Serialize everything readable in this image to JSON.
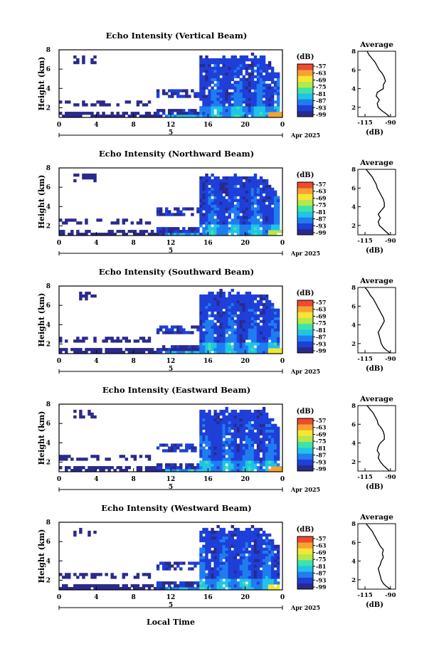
{
  "chart_data": {
    "type": "heatmap",
    "xlabel": "Local Time",
    "date_label": "5",
    "date_suffix": "Apr 2025",
    "x_ticks": [
      "0",
      "4",
      "8",
      "12",
      "16",
      "20",
      "0"
    ],
    "xlim_hours": [
      0,
      24
    ],
    "ylabel": "Height (km)",
    "ylim_km": [
      1,
      8
    ],
    "y_ticks": [
      "8",
      "6",
      "4",
      "2"
    ],
    "colorbar": {
      "unit_label": "(dB)",
      "tick_labels": [
        "-57",
        "-63",
        "-69",
        "-75",
        "-81",
        "-87",
        "-93",
        "-99"
      ],
      "range_db": [
        -99,
        -57
      ],
      "colors": [
        "#2a2a8c",
        "#1e3fd8",
        "#1f7df0",
        "#1fc4e8",
        "#3fe3a8",
        "#b5e84a",
        "#f5e633",
        "#f6a232",
        "#ef4a2e"
      ]
    },
    "average_profile": {
      "title": "Average",
      "x_ticks": [
        "-115",
        "-90"
      ],
      "xlim_db": [
        -122,
        -85
      ],
      "y_ticks": [
        "8",
        "6",
        "4",
        "2"
      ],
      "unit_label": "(dB)"
    },
    "panels": [
      {
        "title": "Echo Intensity (Vertical Beam)",
        "cloud_top_km": 7.6,
        "surface_intensity": 0.8,
        "avg_profile": [
          {
            "h": 8.0,
            "db": -113
          },
          {
            "h": 7.6,
            "db": -111
          },
          {
            "h": 7.2,
            "db": -108
          },
          {
            "h": 6.8,
            "db": -105
          },
          {
            "h": 6.4,
            "db": -103
          },
          {
            "h": 6.0,
            "db": -101
          },
          {
            "h": 5.6,
            "db": -98
          },
          {
            "h": 5.2,
            "db": -96
          },
          {
            "h": 4.8,
            "db": -95
          },
          {
            "h": 4.4,
            "db": -97
          },
          {
            "h": 4.0,
            "db": -97
          },
          {
            "h": 3.6,
            "db": -103
          },
          {
            "h": 3.2,
            "db": -104
          },
          {
            "h": 2.8,
            "db": -101
          },
          {
            "h": 2.4,
            "db": -103
          },
          {
            "h": 2.0,
            "db": -102
          },
          {
            "h": 1.6,
            "db": -98
          },
          {
            "h": 1.3,
            "db": -94
          },
          {
            "h": 1.0,
            "db": -91
          }
        ]
      },
      {
        "title": "Echo Intensity (Northward Beam)",
        "cloud_top_km": 7.4,
        "surface_intensity": 0.6,
        "avg_profile": [
          {
            "h": 8.0,
            "db": -114
          },
          {
            "h": 7.6,
            "db": -111
          },
          {
            "h": 7.2,
            "db": -108
          },
          {
            "h": 6.8,
            "db": -106
          },
          {
            "h": 6.4,
            "db": -104
          },
          {
            "h": 6.0,
            "db": -103
          },
          {
            "h": 5.6,
            "db": -101
          },
          {
            "h": 5.2,
            "db": -99
          },
          {
            "h": 4.8,
            "db": -97
          },
          {
            "h": 4.4,
            "db": -96
          },
          {
            "h": 4.0,
            "db": -96
          },
          {
            "h": 3.6,
            "db": -99
          },
          {
            "h": 3.2,
            "db": -102
          },
          {
            "h": 2.8,
            "db": -100
          },
          {
            "h": 2.4,
            "db": -102
          },
          {
            "h": 2.0,
            "db": -101
          },
          {
            "h": 1.6,
            "db": -97
          },
          {
            "h": 1.3,
            "db": -94
          },
          {
            "h": 1.0,
            "db": -91
          }
        ]
      },
      {
        "title": "Echo Intensity (Southward Beam)",
        "cloud_top_km": 7.6,
        "surface_intensity": 0.7,
        "avg_profile": [
          {
            "h": 8.0,
            "db": -115
          },
          {
            "h": 7.6,
            "db": -112
          },
          {
            "h": 7.2,
            "db": -110
          },
          {
            "h": 6.8,
            "db": -107
          },
          {
            "h": 6.4,
            "db": -105
          },
          {
            "h": 6.0,
            "db": -103
          },
          {
            "h": 5.6,
            "db": -101
          },
          {
            "h": 5.2,
            "db": -99
          },
          {
            "h": 4.8,
            "db": -97
          },
          {
            "h": 4.4,
            "db": -96
          },
          {
            "h": 4.0,
            "db": -98
          },
          {
            "h": 3.6,
            "db": -100
          },
          {
            "h": 3.2,
            "db": -102
          },
          {
            "h": 2.8,
            "db": -101
          },
          {
            "h": 2.4,
            "db": -100
          },
          {
            "h": 2.0,
            "db": -99
          },
          {
            "h": 1.6,
            "db": -97
          },
          {
            "h": 1.3,
            "db": -94
          },
          {
            "h": 1.0,
            "db": -90
          }
        ]
      },
      {
        "title": "Echo Intensity (Eastward Beam)",
        "cloud_top_km": 7.6,
        "surface_intensity": 0.85,
        "avg_profile": [
          {
            "h": 8.0,
            "db": -113
          },
          {
            "h": 7.6,
            "db": -110
          },
          {
            "h": 7.2,
            "db": -107
          },
          {
            "h": 6.8,
            "db": -105
          },
          {
            "h": 6.4,
            "db": -103
          },
          {
            "h": 6.0,
            "db": -102
          },
          {
            "h": 5.6,
            "db": -99
          },
          {
            "h": 5.2,
            "db": -97
          },
          {
            "h": 4.8,
            "db": -96
          },
          {
            "h": 4.4,
            "db": -96
          },
          {
            "h": 4.0,
            "db": -100
          },
          {
            "h": 3.6,
            "db": -102
          },
          {
            "h": 3.2,
            "db": -103
          },
          {
            "h": 2.8,
            "db": -101
          },
          {
            "h": 2.4,
            "db": -102
          },
          {
            "h": 2.0,
            "db": -100
          },
          {
            "h": 1.6,
            "db": -97
          },
          {
            "h": 1.3,
            "db": -94
          },
          {
            "h": 1.0,
            "db": -91
          }
        ]
      },
      {
        "title": "Echo Intensity (Westward Beam)",
        "cloud_top_km": 7.6,
        "surface_intensity": 0.75,
        "avg_profile": [
          {
            "h": 8.0,
            "db": -114
          },
          {
            "h": 7.6,
            "db": -111
          },
          {
            "h": 7.2,
            "db": -108
          },
          {
            "h": 6.8,
            "db": -106
          },
          {
            "h": 6.4,
            "db": -104
          },
          {
            "h": 6.0,
            "db": -102
          },
          {
            "h": 5.6,
            "db": -100
          },
          {
            "h": 5.2,
            "db": -97
          },
          {
            "h": 4.8,
            "db": -98
          },
          {
            "h": 4.4,
            "db": -97
          },
          {
            "h": 4.0,
            "db": -99
          },
          {
            "h": 3.6,
            "db": -100
          },
          {
            "h": 3.2,
            "db": -102
          },
          {
            "h": 2.8,
            "db": -101
          },
          {
            "h": 2.4,
            "db": -100
          },
          {
            "h": 2.0,
            "db": -99
          },
          {
            "h": 1.6,
            "db": -97
          },
          {
            "h": 1.3,
            "db": -94
          },
          {
            "h": 1.0,
            "db": -90
          }
        ]
      }
    ]
  }
}
